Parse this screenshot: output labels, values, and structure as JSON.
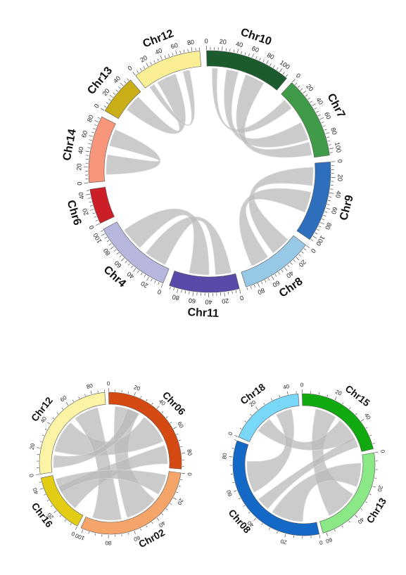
{
  "panels": [
    {
      "id": "top",
      "chromosomes": [
        {
          "name": "Chr10",
          "color": "#1c5b2e",
          "length": 112,
          "ticks": [
            0,
            20,
            40,
            60,
            80,
            100
          ]
        },
        {
          "name": "Chr7",
          "color": "#3f9b48",
          "length": 108,
          "ticks": [
            0,
            20,
            40,
            60,
            80,
            100
          ]
        },
        {
          "name": "Chr9",
          "color": "#2d6fbd",
          "length": 106,
          "ticks": [
            0,
            20,
            40,
            60,
            80,
            100
          ]
        },
        {
          "name": "Chr8",
          "color": "#97c8e6",
          "length": 96,
          "ticks": [
            0,
            20,
            40,
            60,
            80
          ]
        },
        {
          "name": "Chr11",
          "color": "#5b49aa",
          "length": 92,
          "ticks": [
            0,
            20,
            40,
            60,
            80
          ]
        },
        {
          "name": "Chr4",
          "color": "#b7b7de",
          "length": 106,
          "ticks": [
            0,
            20,
            40,
            60,
            80,
            100
          ]
        },
        {
          "name": "Chr6",
          "color": "#cc1e27",
          "length": 46,
          "ticks": [
            0,
            20,
            40
          ]
        },
        {
          "name": "Chr14",
          "color": "#f7967a",
          "length": 88,
          "ticks": [
            0,
            20,
            40,
            60,
            80
          ]
        },
        {
          "name": "Chr13",
          "color": "#c9ae18",
          "length": 52,
          "ticks": [
            0,
            20,
            40
          ]
        },
        {
          "name": "Chr12",
          "color": "#fbef95",
          "length": 90,
          "ticks": [
            0,
            20,
            40,
            60,
            80
          ]
        }
      ],
      "links": [
        {
          "from": [
            "Chr10",
            8,
            16
          ],
          "to": [
            "Chr7",
            10,
            26
          ]
        },
        {
          "from": [
            "Chr10",
            30,
            48
          ],
          "to": [
            "Chr7",
            52,
            80
          ]
        },
        {
          "from": [
            "Chr10",
            60,
            90
          ],
          "to": [
            "Chr7",
            84,
            104
          ]
        },
        {
          "from": [
            "Chr9",
            6,
            34
          ],
          "to": [
            "Chr8",
            10,
            40
          ]
        },
        {
          "from": [
            "Chr9",
            44,
            76
          ],
          "to": [
            "Chr8",
            50,
            78
          ]
        },
        {
          "from": [
            "Chr11",
            6,
            30
          ],
          "to": [
            "Chr4",
            8,
            42
          ]
        },
        {
          "from": [
            "Chr11",
            40,
            70
          ],
          "to": [
            "Chr4",
            54,
            90
          ]
        },
        {
          "from": [
            "Chr14",
            10,
            40
          ],
          "to": [
            "Chr14",
            54,
            80
          ]
        },
        {
          "from": [
            "Chr13",
            18,
            44
          ],
          "to": [
            "Chr12",
            20,
            50
          ]
        },
        {
          "from": [
            "Chr12",
            6,
            14
          ],
          "to": [
            "Chr12",
            62,
            72
          ]
        }
      ]
    },
    {
      "id": "bottom-left",
      "chromosomes": [
        {
          "name": "Chr06",
          "color": "#d44a12",
          "length": 92,
          "ticks": [
            0,
            20,
            40,
            60,
            80
          ]
        },
        {
          "name": "Chr02",
          "color": "#f5a569",
          "length": 102,
          "ticks": [
            0,
            20,
            40,
            60,
            80,
            100
          ]
        },
        {
          "name": "Chr16",
          "color": "#e2cd14",
          "length": 48,
          "ticks": [
            0,
            20,
            40
          ]
        },
        {
          "name": "Chr12",
          "color": "#fcf4a4",
          "length": 90,
          "ticks": [
            0,
            20,
            40,
            60,
            80
          ]
        }
      ],
      "links": [
        {
          "from": [
            "Chr06",
            6,
            30
          ],
          "to": [
            "Chr02",
            30,
            62
          ]
        },
        {
          "from": [
            "Chr06",
            36,
            66
          ],
          "to": [
            "Chr12",
            20,
            52
          ]
        },
        {
          "from": [
            "Chr06",
            70,
            88
          ],
          "to": [
            "Chr16",
            10,
            36
          ]
        },
        {
          "from": [
            "Chr02",
            68,
            96
          ],
          "to": [
            "Chr12",
            58,
            82
          ]
        },
        {
          "from": [
            "Chr02",
            4,
            24
          ],
          "to": [
            "Chr16",
            30,
            44
          ]
        },
        {
          "from": [
            "Chr12",
            4,
            16
          ],
          "to": [
            "Chr06",
            18,
            30
          ]
        }
      ]
    },
    {
      "id": "bottom-right",
      "chromosomes": [
        {
          "name": "Chr15",
          "color": "#10aa10",
          "length": 58,
          "ticks": [
            0,
            20,
            40
          ]
        },
        {
          "name": "Chr13",
          "color": "#8be886",
          "length": 62,
          "ticks": [
            0,
            20,
            40,
            60
          ]
        },
        {
          "name": "Chr08",
          "color": "#1468c6",
          "length": 90,
          "ticks": [
            0,
            20,
            40,
            60,
            80
          ]
        },
        {
          "name": "Chr18",
          "color": "#79d7f7",
          "length": 46,
          "ticks": [
            0,
            20,
            40
          ]
        }
      ],
      "links": [
        {
          "from": [
            "Chr15",
            10,
            26
          ],
          "to": [
            "Chr13",
            30,
            54
          ]
        },
        {
          "from": [
            "Chr08",
            10,
            34
          ],
          "to": [
            "Chr13",
            6,
            24
          ]
        },
        {
          "from": [
            "Chr18",
            10,
            22
          ],
          "to": [
            "Chr15",
            30,
            48
          ]
        },
        {
          "from": [
            "Chr08",
            54,
            78
          ],
          "to": [
            "Chr18",
            28,
            40
          ]
        },
        {
          "from": [
            "Chr08",
            38,
            48
          ],
          "to": [
            "Chr15",
            46,
            54
          ]
        }
      ]
    }
  ]
}
